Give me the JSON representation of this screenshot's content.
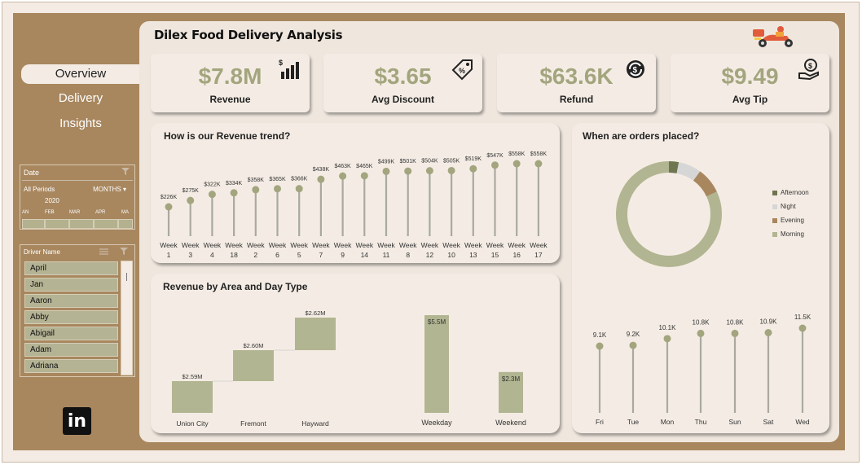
{
  "title": "Dilex Food Delivery Analysis",
  "nav": [
    {
      "label": "Overview",
      "active": true
    },
    {
      "label": "Delivery",
      "active": false
    },
    {
      "label": "Insights",
      "active": false
    }
  ],
  "date_slicer": {
    "title": "Date",
    "period": "All Periods",
    "granularity": "MONTHS",
    "year": "2020",
    "months": [
      "AN",
      "FEB",
      "MAR",
      "APR",
      "MA"
    ]
  },
  "driver_slicer": {
    "title": "Driver Name",
    "items": [
      "April",
      "Jan",
      "Aaron",
      "Abby",
      "Abigail",
      "Adam",
      "Adriana"
    ]
  },
  "kpis": [
    {
      "value": "$7.8M",
      "label": "Revenue",
      "icon": "bar-chart-icon"
    },
    {
      "value": "$3.65",
      "label": "Avg Discount",
      "icon": "price-tag-icon"
    },
    {
      "value": "$63.6K",
      "label": "Refund",
      "icon": "refresh-dollar-icon"
    },
    {
      "value": "$9.49",
      "label": "Avg Tip",
      "icon": "hand-coin-icon"
    }
  ],
  "panels": {
    "revenue_trend": "How is our Revenue trend?",
    "orders_placed": "When are orders placed?",
    "area_day": "Revenue by Area and Day Type"
  },
  "colors": {
    "accent": "#a3a57e",
    "bar": "#b2b591",
    "brown": "#a8875f",
    "card": "#f4ece4"
  },
  "chart_data": [
    {
      "type": "line",
      "title": "How is our Revenue trend?",
      "categories": [
        "Week 1",
        "Week 3",
        "Week 4",
        "Week 18",
        "Week 2",
        "Week 6",
        "Week 5",
        "Week 7",
        "Week 9",
        "Week 14",
        "Week 11",
        "Week 8",
        "Week 12",
        "Week 10",
        "Week 13",
        "Week 15",
        "Week 16",
        "Week 17"
      ],
      "values": [
        226,
        275,
        322,
        334,
        358,
        365,
        366,
        438,
        463,
        465,
        499,
        501,
        504,
        505,
        519,
        547,
        558,
        558
      ],
      "labels": [
        "$226K",
        "$275K",
        "$322K",
        "$334K",
        "$358K",
        "$365K",
        "$366K",
        "$438K",
        "$463K",
        "$465K",
        "$499K",
        "$501K",
        "$504K",
        "$505K",
        "$519K",
        "$547K",
        "$558K",
        "$558K"
      ]
    },
    {
      "type": "pie",
      "title": "When are orders placed?",
      "categories": [
        "Afternoon",
        "Night",
        "Evening",
        "Morning"
      ],
      "values": [
        3,
        7,
        8,
        82
      ],
      "colors": [
        "#6e7551",
        "#d6d6d6",
        "#a8875f",
        "#b2b591"
      ]
    },
    {
      "type": "bar",
      "title": "Revenue by Area and Day Type",
      "subtype": "waterfall",
      "categories": [
        "Union City",
        "Fremont",
        "Hayward"
      ],
      "values": [
        2.59,
        2.6,
        2.62
      ],
      "labels": [
        "$2.59M",
        "$2.60M",
        "$2.62M"
      ]
    },
    {
      "type": "bar",
      "categories": [
        "Weekday",
        "Weekend"
      ],
      "values": [
        5.5,
        2.3
      ],
      "labels": [
        "$5.5M",
        "$2.3M"
      ]
    },
    {
      "type": "line",
      "categories": [
        "Fri",
        "Tue",
        "Mon",
        "Thu",
        "Sun",
        "Sat",
        "Wed"
      ],
      "values": [
        9.1,
        9.2,
        10.1,
        10.8,
        10.8,
        10.9,
        11.5
      ],
      "labels": [
        "9.1K",
        "9.2K",
        "10.1K",
        "10.8K",
        "10.8K",
        "10.9K",
        "11.5K"
      ]
    }
  ]
}
